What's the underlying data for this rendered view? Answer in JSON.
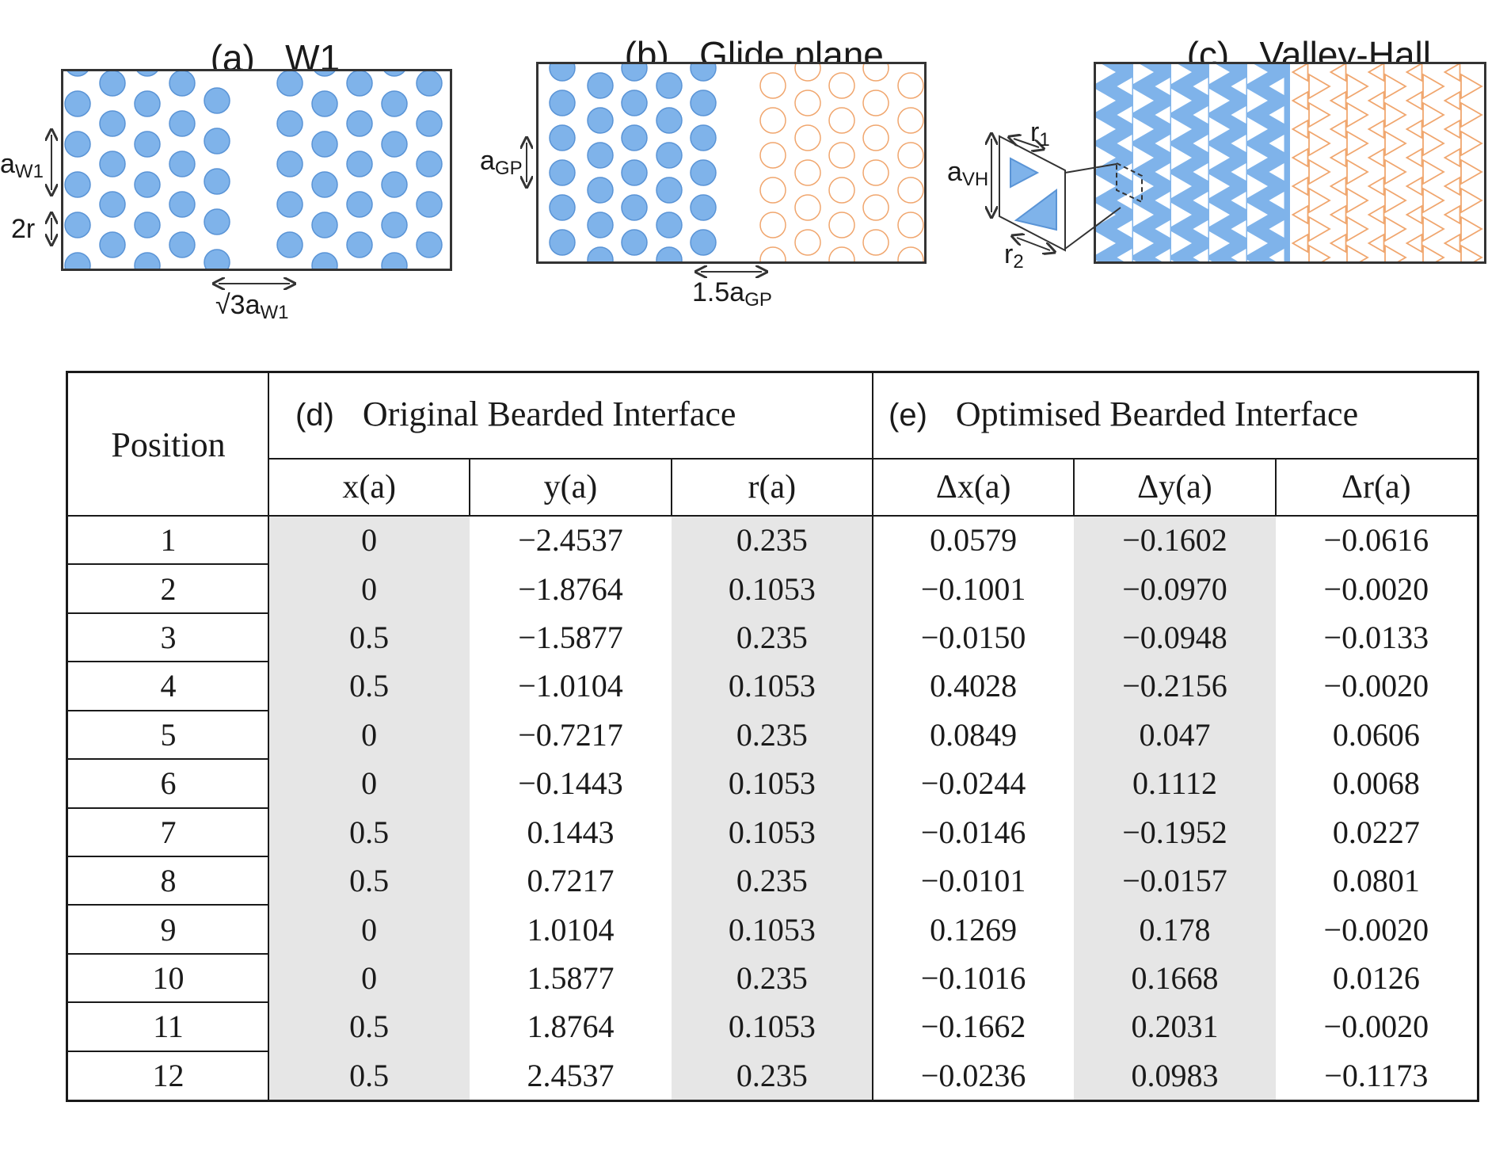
{
  "panels": {
    "a": {
      "letter": "(a)",
      "title": "W1",
      "dim_vertical": "a",
      "dim_vertical_sub": "W1",
      "dim_radius": "2r",
      "dim_horizontal": "√3a",
      "dim_horizontal_sub": "W1"
    },
    "b": {
      "letter": "(b)",
      "title": "Glide plane",
      "dim_vertical": "a",
      "dim_vertical_sub": "GP",
      "dim_horizontal": "1.5a",
      "dim_horizontal_sub": "GP"
    },
    "c": {
      "letter": "(c)",
      "title": "Valley-Hall",
      "dim_vertical": "a",
      "dim_vertical_sub": "VH",
      "r1": "r",
      "r1_sub": "1",
      "r2": "r",
      "r2_sub": "2"
    }
  },
  "colors": {
    "filled_hole": "#7fb3ea",
    "filled_hole_edge": "#5a94d6",
    "open_hole_edge": "#f0a66e",
    "shaded_column": "#e6e6e6",
    "frame": "#333333"
  },
  "table": {
    "row_header": "Position",
    "group_d": {
      "letter": "(d)",
      "title": "Original Bearded Interface"
    },
    "group_e": {
      "letter": "(e)",
      "title": "Optimised Bearded Interface"
    },
    "columns": [
      "x(a)",
      "y(a)",
      "r(a)",
      "Δx(a)",
      "Δy(a)",
      "Δr(a)"
    ],
    "rows": [
      [
        "1",
        "0",
        "−2.4537",
        "0.235",
        "0.0579",
        "−0.1602",
        "−0.0616"
      ],
      [
        "2",
        "0",
        "−1.8764",
        "0.1053",
        "−0.1001",
        "−0.0970",
        "−0.0020"
      ],
      [
        "3",
        "0.5",
        "−1.5877",
        "0.235",
        "−0.0150",
        "−0.0948",
        "−0.0133"
      ],
      [
        "4",
        "0.5",
        "−1.0104",
        "0.1053",
        "0.4028",
        "−0.2156",
        "−0.0020"
      ],
      [
        "5",
        "0",
        "−0.7217",
        "0.235",
        "0.0849",
        "0.047",
        "0.0606"
      ],
      [
        "6",
        "0",
        "−0.1443",
        "0.1053",
        "−0.0244",
        "0.1112",
        "0.0068"
      ],
      [
        "7",
        "0.5",
        "0.1443",
        "0.1053",
        "−0.0146",
        "−0.1952",
        "0.0227"
      ],
      [
        "8",
        "0.5",
        "0.7217",
        "0.235",
        "−0.0101",
        "−0.0157",
        "0.0801"
      ],
      [
        "9",
        "0",
        "1.0104",
        "0.1053",
        "0.1269",
        "0.178",
        "−0.0020"
      ],
      [
        "10",
        "0",
        "1.5877",
        "0.235",
        "−0.1016",
        "0.1668",
        "0.0126"
      ],
      [
        "11",
        "0.5",
        "1.8764",
        "0.1053",
        "−0.1662",
        "0.2031",
        "−0.0020"
      ],
      [
        "12",
        "0.5",
        "2.4537",
        "0.235",
        "−0.0236",
        "0.0983",
        "−0.1173"
      ]
    ]
  }
}
